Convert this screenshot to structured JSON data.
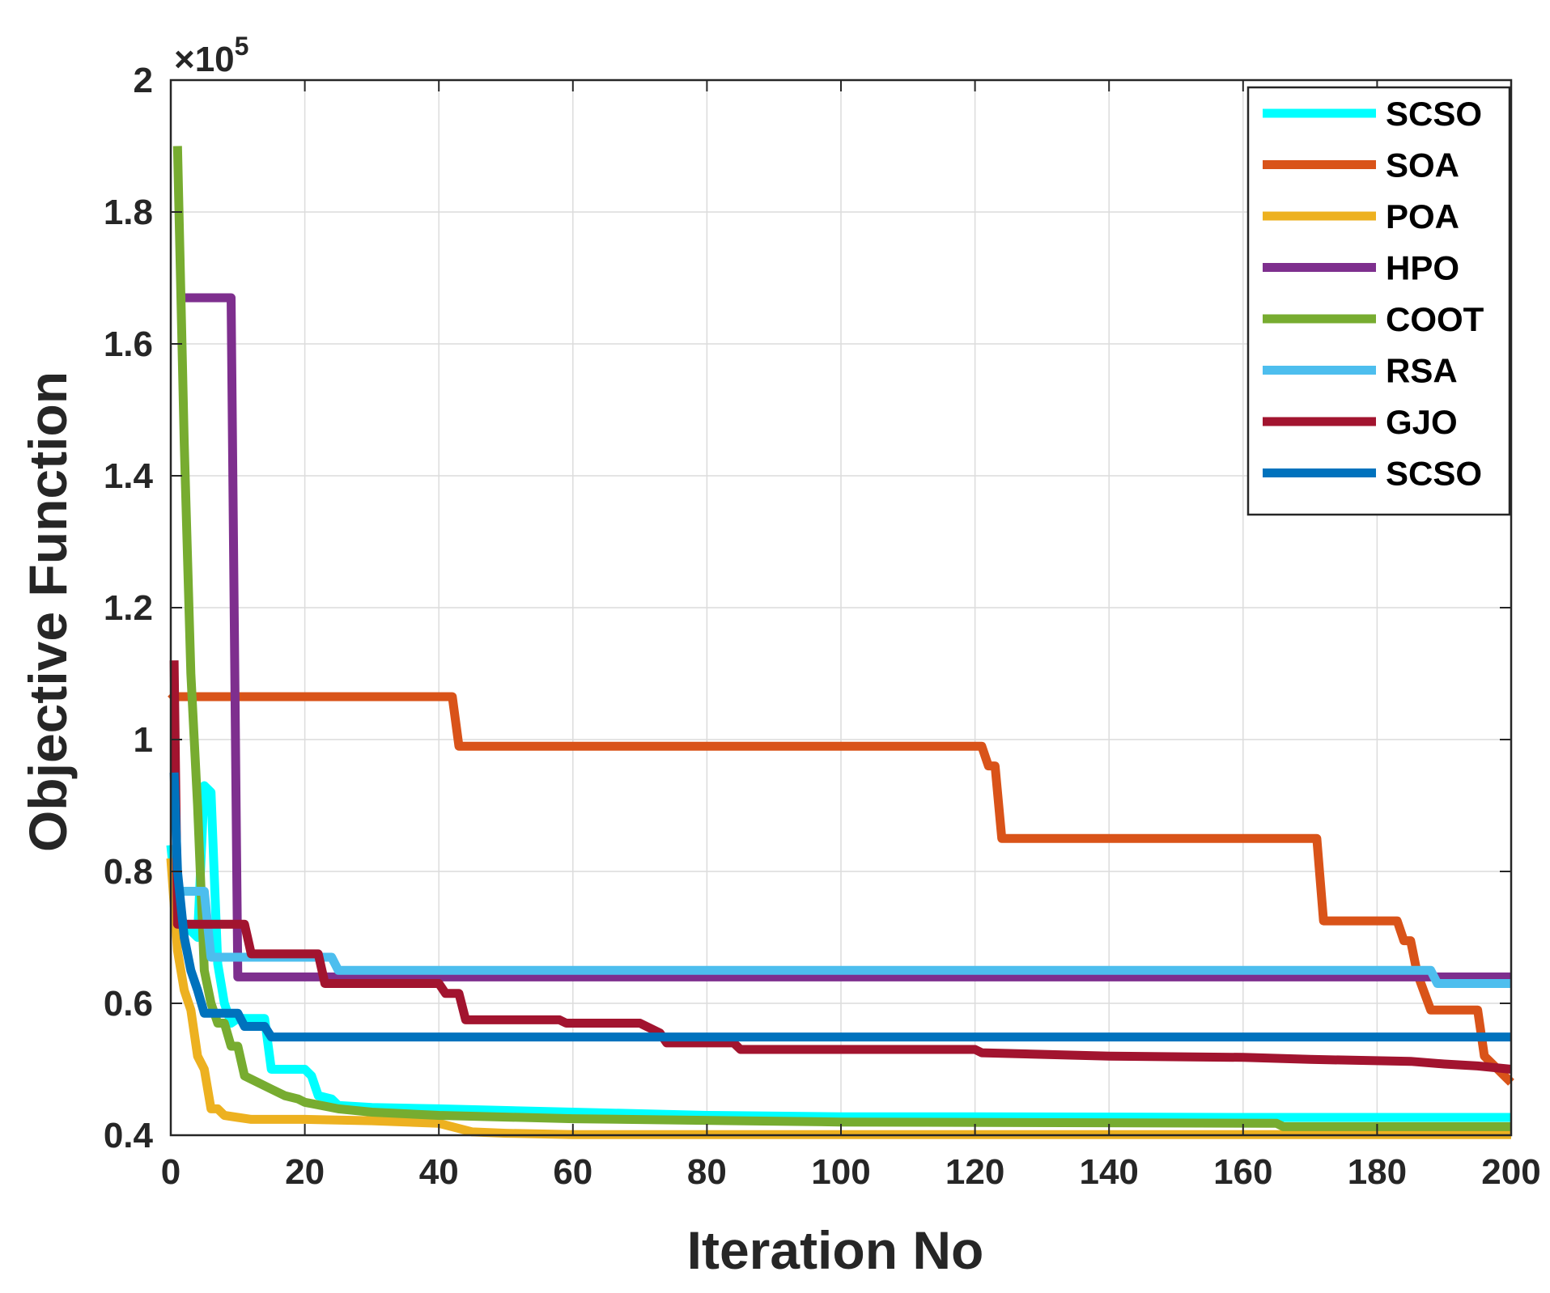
{
  "chart_data": {
    "type": "line",
    "title": "",
    "xlabel": "Iteration No",
    "ylabel": "Objective Function",
    "y_multiplier": "×10",
    "y_multiplier_exp": "5",
    "xlim": [
      0,
      200
    ],
    "ylim": [
      0.4,
      2.0
    ],
    "xticks": [
      0,
      20,
      40,
      60,
      80,
      100,
      120,
      140,
      160,
      180,
      200
    ],
    "xtick_labels": [
      "0",
      "20",
      "40",
      "60",
      "80",
      "100",
      "120",
      "140",
      "160",
      "180",
      "200"
    ],
    "yticks": [
      0.4,
      0.6,
      0.8,
      1.0,
      1.2,
      1.4,
      1.6,
      1.8,
      2.0
    ],
    "ytick_labels": [
      "0.4",
      "0.6",
      "0.8",
      "1",
      "1.2",
      "1.4",
      "1.6",
      "1.8",
      "2"
    ],
    "grid": true,
    "legend_position": "top-right",
    "series": [
      {
        "name": "SCSO",
        "color": "#00FFFF",
        "points": [
          [
            0,
            0.84
          ],
          [
            1,
            0.74
          ],
          [
            2,
            0.72
          ],
          [
            3,
            0.71
          ],
          [
            4,
            0.7
          ],
          [
            5,
            0.93
          ],
          [
            6,
            0.92
          ],
          [
            7,
            0.66
          ],
          [
            8,
            0.6
          ],
          [
            9,
            0.57
          ],
          [
            10,
            0.577
          ],
          [
            14,
            0.577
          ],
          [
            15,
            0.5
          ],
          [
            20,
            0.5
          ],
          [
            21,
            0.49
          ],
          [
            22,
            0.46
          ],
          [
            24,
            0.455
          ],
          [
            25,
            0.445
          ],
          [
            30,
            0.442
          ],
          [
            40,
            0.44
          ],
          [
            60,
            0.435
          ],
          [
            80,
            0.43
          ],
          [
            100,
            0.428
          ],
          [
            120,
            0.428
          ],
          [
            160,
            0.427
          ],
          [
            200,
            0.427
          ]
        ]
      },
      {
        "name": "SOA",
        "color": "#D95319",
        "points": [
          [
            0,
            1.07
          ],
          [
            0.5,
            1.065
          ],
          [
            42,
            1.065
          ],
          [
            43,
            0.99
          ],
          [
            121,
            0.99
          ],
          [
            122,
            0.96
          ],
          [
            123,
            0.96
          ],
          [
            124,
            0.85
          ],
          [
            171,
            0.85
          ],
          [
            172,
            0.725
          ],
          [
            183,
            0.725
          ],
          [
            184,
            0.695
          ],
          [
            185,
            0.695
          ],
          [
            186,
            0.645
          ],
          [
            188,
            0.59
          ],
          [
            195,
            0.59
          ],
          [
            196,
            0.52
          ],
          [
            197,
            0.51
          ],
          [
            199,
            0.49
          ],
          [
            200,
            0.48
          ]
        ]
      },
      {
        "name": "POA",
        "color": "#EDB120",
        "points": [
          [
            0,
            0.82
          ],
          [
            1,
            0.68
          ],
          [
            2,
            0.62
          ],
          [
            3,
            0.59
          ],
          [
            4,
            0.52
          ],
          [
            5,
            0.5
          ],
          [
            6,
            0.44
          ],
          [
            7,
            0.44
          ],
          [
            8,
            0.43
          ],
          [
            10,
            0.427
          ],
          [
            12,
            0.424
          ],
          [
            20,
            0.424
          ],
          [
            30,
            0.422
          ],
          [
            40,
            0.418
          ],
          [
            45,
            0.405
          ],
          [
            50,
            0.403
          ],
          [
            60,
            0.401
          ],
          [
            80,
            0.401
          ],
          [
            200,
            0.401
          ]
        ]
      },
      {
        "name": "HPO",
        "color": "#7E2F8E",
        "points": [
          [
            1,
            1.67
          ],
          [
            9,
            1.67
          ],
          [
            10,
            0.64
          ],
          [
            200,
            0.64
          ]
        ]
      },
      {
        "name": "COOT",
        "color": "#77AC30",
        "points": [
          [
            1,
            1.9
          ],
          [
            2,
            1.45
          ],
          [
            3,
            1.1
          ],
          [
            4,
            0.9
          ],
          [
            5,
            0.65
          ],
          [
            6,
            0.6
          ],
          [
            7,
            0.57
          ],
          [
            8,
            0.57
          ],
          [
            9,
            0.535
          ],
          [
            10,
            0.535
          ],
          [
            11,
            0.49
          ],
          [
            13,
            0.48
          ],
          [
            15,
            0.47
          ],
          [
            17,
            0.46
          ],
          [
            19,
            0.455
          ],
          [
            20,
            0.45
          ],
          [
            25,
            0.44
          ],
          [
            30,
            0.435
          ],
          [
            40,
            0.43
          ],
          [
            60,
            0.425
          ],
          [
            100,
            0.42
          ],
          [
            165,
            0.418
          ],
          [
            166,
            0.413
          ],
          [
            200,
            0.413
          ]
        ]
      },
      {
        "name": "RSA",
        "color": "#4DBEEE",
        "points": [
          [
            1,
            0.77
          ],
          [
            5,
            0.77
          ],
          [
            6,
            0.67
          ],
          [
            24,
            0.67
          ],
          [
            25,
            0.65
          ],
          [
            188,
            0.65
          ],
          [
            189,
            0.63
          ],
          [
            200,
            0.63
          ]
        ]
      },
      {
        "name": "GJO",
        "color": "#A2142F",
        "points": [
          [
            0.5,
            1.12
          ],
          [
            1,
            0.72
          ],
          [
            11,
            0.72
          ],
          [
            12,
            0.675
          ],
          [
            22,
            0.675
          ],
          [
            23,
            0.63
          ],
          [
            40,
            0.63
          ],
          [
            41,
            0.615
          ],
          [
            43,
            0.615
          ],
          [
            44,
            0.575
          ],
          [
            58,
            0.575
          ],
          [
            59,
            0.57
          ],
          [
            70,
            0.57
          ],
          [
            73,
            0.555
          ],
          [
            74,
            0.54
          ],
          [
            84,
            0.54
          ],
          [
            85,
            0.53
          ],
          [
            120,
            0.53
          ],
          [
            121,
            0.525
          ],
          [
            140,
            0.52
          ],
          [
            160,
            0.518
          ],
          [
            170,
            0.515
          ],
          [
            185,
            0.512
          ],
          [
            190,
            0.508
          ],
          [
            195,
            0.505
          ],
          [
            200,
            0.5
          ]
        ]
      },
      {
        "name": "SCSO",
        "color": "#0072BD",
        "points": [
          [
            0.5,
            0.95
          ],
          [
            1,
            0.8
          ],
          [
            2,
            0.7
          ],
          [
            3,
            0.65
          ],
          [
            4,
            0.62
          ],
          [
            5,
            0.585
          ],
          [
            10,
            0.585
          ],
          [
            11,
            0.565
          ],
          [
            14,
            0.565
          ],
          [
            15,
            0.549
          ],
          [
            200,
            0.549
          ]
        ]
      }
    ]
  }
}
